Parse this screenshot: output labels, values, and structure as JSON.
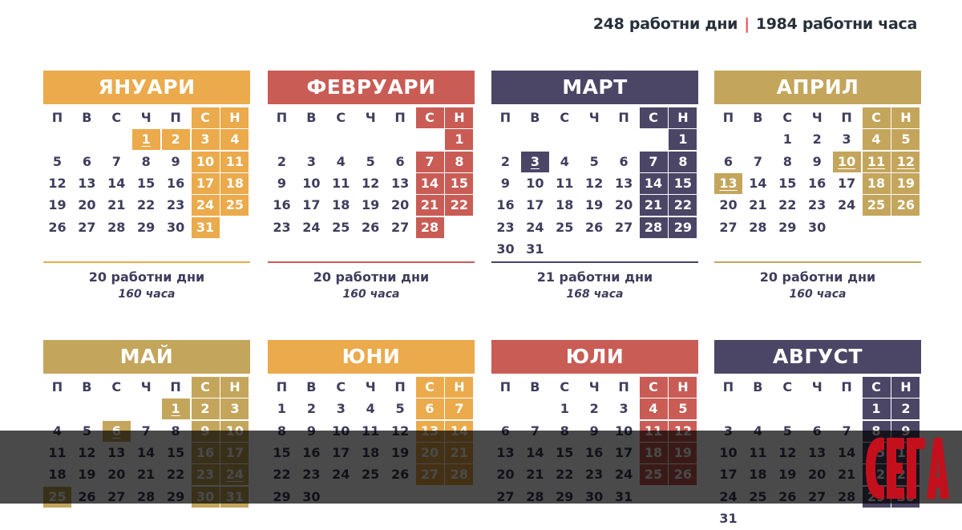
{
  "summary": {
    "days": "248 работни дни",
    "separator": "|",
    "hours": "1984 работни часа"
  },
  "weekdays": [
    "П",
    "В",
    "С",
    "Ч",
    "П",
    "С",
    "Н"
  ],
  "colors": {
    "orange": "#EBAA4B",
    "red": "#C95C55",
    "purple": "#4B4566",
    "gold": "#C4A55C",
    "text": "#3F3D5C"
  },
  "months": [
    {
      "name": "ЯНУАРИ",
      "color": "#EBAA4B",
      "first_weekday": 3,
      "days": 31,
      "holidays": [
        1
      ],
      "extra_off": [
        1,
        2
      ],
      "stat_days": "20 работни дни",
      "stat_hours": "160 часа"
    },
    {
      "name": "ФЕВРУАРИ",
      "color": "#C95C55",
      "first_weekday": 6,
      "days": 28,
      "holidays": [],
      "extra_off": [],
      "stat_days": "20 работни дни",
      "stat_hours": "160 часа"
    },
    {
      "name": "МАРТ",
      "color": "#4B4566",
      "first_weekday": 6,
      "days": 31,
      "holidays": [
        3
      ],
      "extra_off": [
        3
      ],
      "stat_days": "21 работни дни",
      "stat_hours": "168 часа"
    },
    {
      "name": "АПРИЛ",
      "color": "#C4A55C",
      "first_weekday": 2,
      "days": 30,
      "holidays": [
        10,
        11,
        12,
        13
      ],
      "extra_off": [
        10,
        13
      ],
      "stat_days": "20 работни дни",
      "stat_hours": "160 часа"
    },
    {
      "name": "МАЙ",
      "color": "#C4A55C",
      "first_weekday": 4,
      "days": 31,
      "holidays": [
        1,
        6,
        24
      ],
      "extra_off": [
        1,
        6,
        25
      ]
    },
    {
      "name": "ЮНИ",
      "color": "#EBAA4B",
      "first_weekday": 0,
      "days": 30,
      "holidays": [],
      "extra_off": []
    },
    {
      "name": "ЮЛИ",
      "color": "#C95C55",
      "first_weekday": 2,
      "days": 31,
      "holidays": [],
      "extra_off": []
    },
    {
      "name": "АВГУСТ",
      "color": "#4B4566",
      "first_weekday": 5,
      "days": 31,
      "holidays": [],
      "extra_off": []
    }
  ],
  "logo": {
    "text": "СЕГА",
    "color": "#C4101C"
  }
}
